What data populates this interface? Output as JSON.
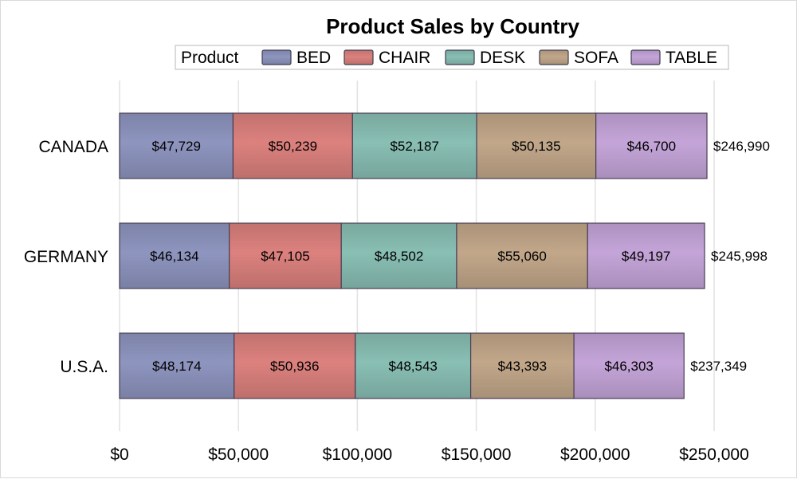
{
  "chart_data": {
    "type": "bar",
    "orientation": "horizontal",
    "stacked": true,
    "title": "Product Sales by Country",
    "legend_title": "Product",
    "legend_position": "top",
    "categories": [
      "CANADA",
      "GERMANY",
      "U.S.A."
    ],
    "series": [
      {
        "name": "BED",
        "values": [
          47729,
          46134,
          48174
        ],
        "color": "#8e95bf",
        "labels": [
          "$47,729",
          "$46,134",
          "$48,174"
        ]
      },
      {
        "name": "CHAIR",
        "values": [
          50239,
          47105,
          50936
        ],
        "color": "#dc817e",
        "labels": [
          "$50,239",
          "$47,105",
          "$50,936"
        ]
      },
      {
        "name": "DESK",
        "values": [
          52187,
          48502,
          48543
        ],
        "color": "#89bfb4",
        "labels": [
          "$52,187",
          "$48,502",
          "$48,543"
        ]
      },
      {
        "name": "SOFA",
        "values": [
          50135,
          55060,
          43393
        ],
        "color": "#c2a78a",
        "labels": [
          "$50,135",
          "$55,060",
          "$43,393"
        ]
      },
      {
        "name": "TABLE",
        "values": [
          46700,
          49197,
          46303
        ],
        "color": "#c5a5d9",
        "labels": [
          "$46,700",
          "$49,197",
          "$46,303"
        ]
      }
    ],
    "totals": [
      246990,
      245998,
      237349
    ],
    "total_labels": [
      "$246,990",
      "$245,998",
      "$237,349"
    ],
    "xlim": [
      0,
      250000
    ],
    "xticks": [
      0,
      50000,
      100000,
      150000,
      200000,
      250000
    ],
    "xtick_labels": [
      "$0",
      "$50,000",
      "$100,000",
      "$150,000",
      "$200,000",
      "$250,000"
    ],
    "grid": true
  }
}
